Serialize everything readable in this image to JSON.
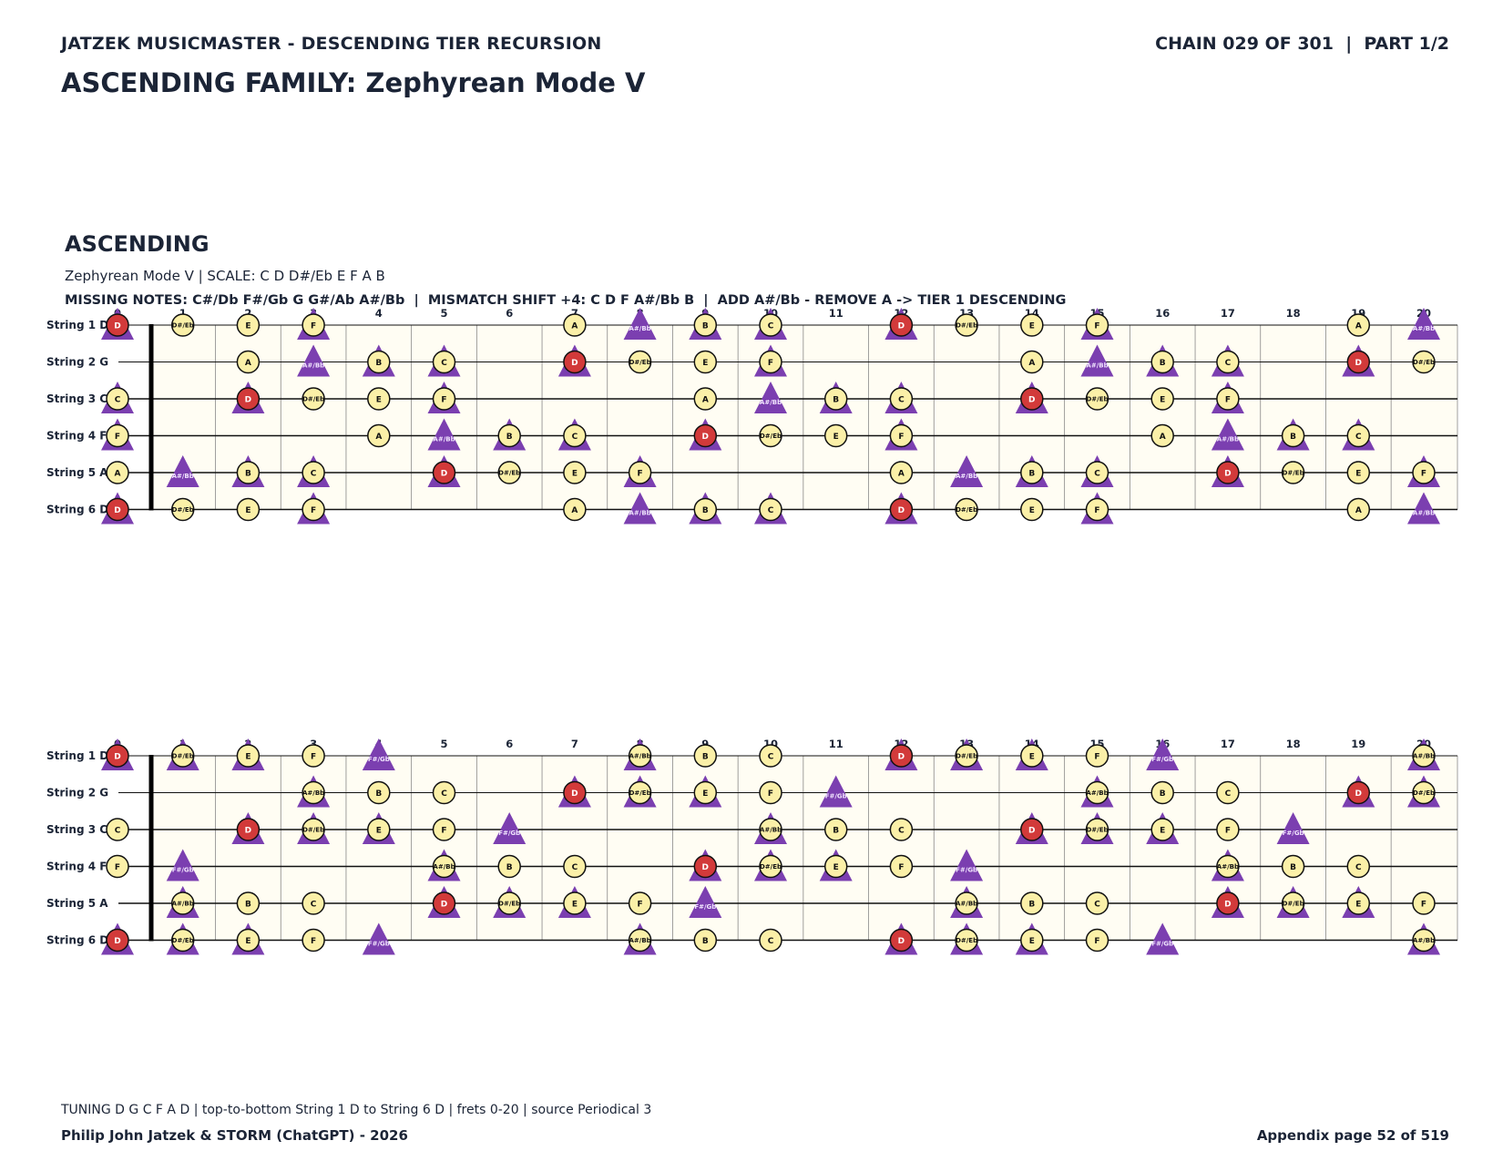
{
  "header": {
    "left": "JATZEK MUSICMASTER - DESCENDING TIER RECURSION",
    "right": "CHAIN 029 OF 301  |  PART 1/2"
  },
  "title": "ASCENDING FAMILY: Zephyrean Mode V",
  "section": {
    "title": "ASCENDING",
    "scale_line": "Zephyrean Mode V  |  SCALE: C D D#/Eb E F A B",
    "missing_line": "MISSING NOTES: C#/Db F#/Gb G G#/Ab A#/Bb  |  MISMATCH SHIFT +4: C D F A#/Bb B  |  ADD A#/Bb - REMOVE A -> TIER 1 DESCENDING"
  },
  "colors": {
    "root": "#d23a3a",
    "scale_note": "#fbf0a8",
    "triangle": "#7b3fb0",
    "board_bg": "#fffdf3",
    "text": "#1b2436"
  },
  "fretboard": {
    "fret_numbers": [
      "0",
      "1",
      "2",
      "3",
      "4",
      "5",
      "6",
      "7",
      "8",
      "9",
      "10",
      "11",
      "12",
      "13",
      "14",
      "15",
      "16",
      "17",
      "18",
      "19",
      "20"
    ],
    "strings": [
      "String 1 D",
      "String 2 G",
      "String 3 C",
      "String 4 F",
      "String 5 A",
      "String 6 D"
    ],
    "open_notes": [
      "D",
      "G",
      "C",
      "F",
      "A",
      "D"
    ],
    "chromatic": [
      "C",
      "C#/Db",
      "D",
      "D#/Eb",
      "E",
      "F",
      "F#/Gb",
      "G",
      "G#/Ab",
      "A",
      "A#/Bb",
      "B"
    ],
    "root": "D"
  },
  "diagrams": [
    {
      "name": "ascending-fretboard",
      "circle_notes": [
        "C",
        "D",
        "D#/Eb",
        "E",
        "F",
        "A",
        "B"
      ],
      "triangle_notes": [
        "C",
        "D",
        "F",
        "A#/Bb",
        "B"
      ]
    },
    {
      "name": "descending-fretboard",
      "circle_notes": [
        "C",
        "D",
        "D#/Eb",
        "E",
        "F",
        "A#/Bb",
        "B"
      ],
      "triangle_notes": [
        "D#/Eb",
        "E",
        "F#/Gb",
        "A#/Bb",
        "D"
      ]
    }
  ],
  "footer": {
    "tuning": "TUNING D G C F A D | top-to-bottom String 1 D to String 6 D | frets 0-20 | source Periodical 3",
    "credit": "Philip John Jatzek & STORM (ChatGPT) - 2026",
    "page": "Appendix page 52 of 519"
  }
}
